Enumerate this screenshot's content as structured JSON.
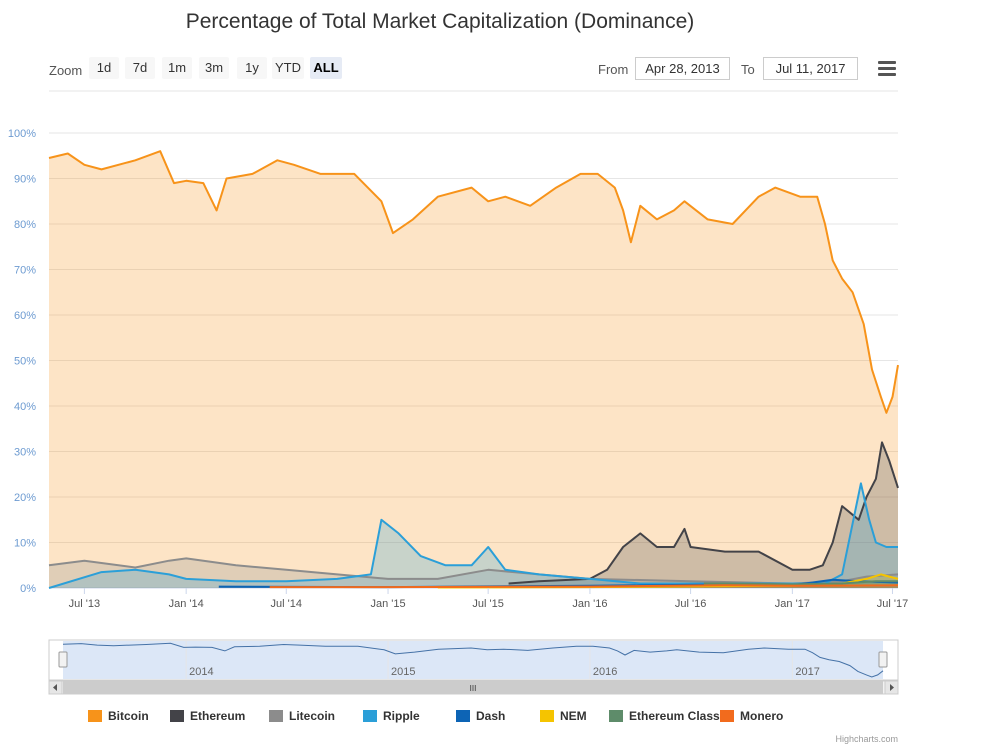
{
  "toolbar": {
    "zoom_label": "Zoom",
    "zoom_buttons": [
      "1d",
      "7d",
      "1m",
      "3m",
      "1y",
      "YTD",
      "ALL"
    ],
    "active_zoom": "ALL",
    "from_label": "From",
    "from_value": "Apr 28, 2013",
    "to_label": "To",
    "to_value": "Jul 11, 2017",
    "menu_icon": "hamburger-menu-icon"
  },
  "navigator": {
    "year_labels": [
      "2014",
      "2015",
      "2016",
      "2017"
    ],
    "scrollbar_grip": "III"
  },
  "credits": "Highcharts.com",
  "chart_data": {
    "type": "area",
    "title": "Percentage of Total Market Capitalization (Dominance)",
    "xlabel": "",
    "ylabel": "",
    "x_range": [
      "2013-04-28",
      "2017-07-11"
    ],
    "x_tick_labels": [
      "Jul '13",
      "Jan '14",
      "Jul '14",
      "Jan '15",
      "Jul '15",
      "Jan '16",
      "Jul '16",
      "Jan '17",
      "Jul '17"
    ],
    "x_ticks": [
      "2013-07-01",
      "2014-01-01",
      "2014-07-01",
      "2015-01-01",
      "2015-07-01",
      "2016-01-01",
      "2016-07-01",
      "2017-01-01",
      "2017-07-01"
    ],
    "y_tick_labels": [
      "0%",
      "10%",
      "20%",
      "30%",
      "40%",
      "50%",
      "60%",
      "70%",
      "80%",
      "90%",
      "100%"
    ],
    "ylim": [
      0,
      100
    ],
    "grid": true,
    "legend_position": "bottom",
    "series": [
      {
        "name": "Bitcoin",
        "color": "#f7931a",
        "x": [
          "2013-04-28",
          "2013-06-01",
          "2013-07-01",
          "2013-08-01",
          "2013-10-01",
          "2013-11-15",
          "2013-12-10",
          "2014-01-01",
          "2014-02-01",
          "2014-02-25",
          "2014-03-15",
          "2014-05-01",
          "2014-06-15",
          "2014-07-15",
          "2014-09-01",
          "2014-11-01",
          "2014-12-20",
          "2015-01-10",
          "2015-02-15",
          "2015-04-01",
          "2015-06-01",
          "2015-07-01",
          "2015-08-01",
          "2015-09-15",
          "2015-11-01",
          "2015-12-15",
          "2016-01-15",
          "2016-02-15",
          "2016-03-01",
          "2016-03-15",
          "2016-04-01",
          "2016-05-01",
          "2016-06-01",
          "2016-06-20",
          "2016-08-01",
          "2016-09-15",
          "2016-11-01",
          "2016-12-01",
          "2017-01-15",
          "2017-02-15",
          "2017-03-01",
          "2017-03-15",
          "2017-04-01",
          "2017-04-20",
          "2017-05-10",
          "2017-05-25",
          "2017-06-10",
          "2017-06-20",
          "2017-07-01",
          "2017-07-11"
        ],
        "values": [
          94.5,
          95.5,
          93,
          92,
          94,
          96,
          89,
          89.5,
          89,
          83,
          90,
          91,
          94,
          93,
          91,
          91,
          85,
          78,
          81,
          86,
          88,
          85,
          86,
          84,
          88,
          91,
          91,
          88,
          83,
          76,
          84,
          81,
          83,
          85,
          81,
          80,
          86,
          88,
          86,
          86,
          80,
          72,
          68,
          65,
          58,
          48,
          42,
          38.5,
          42,
          49
        ]
      },
      {
        "name": "Ethereum",
        "color": "#434348",
        "x": [
          "2015-08-07",
          "2015-10-01",
          "2016-01-01",
          "2016-02-01",
          "2016-03-01",
          "2016-04-01",
          "2016-05-01",
          "2016-06-01",
          "2016-06-20",
          "2016-07-01",
          "2016-09-01",
          "2016-11-01",
          "2017-01-01",
          "2017-02-01",
          "2017-02-25",
          "2017-03-15",
          "2017-04-01",
          "2017-05-01",
          "2017-05-15",
          "2017-06-01",
          "2017-06-12",
          "2017-06-25",
          "2017-07-11"
        ],
        "values": [
          1,
          1.5,
          2,
          4,
          9,
          12,
          9,
          9,
          13,
          9,
          8,
          8,
          4,
          4,
          5,
          10,
          18,
          15,
          20,
          24,
          32,
          28,
          22
        ]
      },
      {
        "name": "Litecoin",
        "color": "#8c8c8c",
        "x": [
          "2013-04-28",
          "2013-07-01",
          "2013-10-01",
          "2013-12-01",
          "2014-01-01",
          "2014-04-01",
          "2014-07-01",
          "2014-10-01",
          "2015-01-01",
          "2015-04-01",
          "2015-07-01",
          "2015-10-01",
          "2016-01-01",
          "2016-07-01",
          "2017-01-01",
          "2017-04-01",
          "2017-05-15",
          "2017-07-11"
        ],
        "values": [
          5,
          6,
          4.5,
          6,
          6.5,
          5,
          4,
          3,
          2,
          2,
          4,
          3,
          2,
          1.5,
          1,
          1.5,
          2.5,
          3
        ]
      },
      {
        "name": "Ripple",
        "color": "#2b9fd8",
        "x": [
          "2013-04-28",
          "2013-08-01",
          "2013-10-01",
          "2013-12-01",
          "2014-01-01",
          "2014-04-01",
          "2014-07-01",
          "2014-10-01",
          "2014-12-01",
          "2014-12-20",
          "2015-01-20",
          "2015-03-01",
          "2015-04-15",
          "2015-06-01",
          "2015-07-01",
          "2015-08-01",
          "2015-10-01",
          "2016-01-01",
          "2016-04-01",
          "2016-07-01",
          "2016-10-01",
          "2017-01-01",
          "2017-03-01",
          "2017-04-01",
          "2017-05-05",
          "2017-05-20",
          "2017-06-01",
          "2017-06-20",
          "2017-07-11"
        ],
        "values": [
          0,
          3.5,
          4,
          3,
          2,
          1.5,
          1.5,
          2,
          3,
          15,
          12,
          7,
          5,
          5,
          9,
          4,
          3,
          2,
          1,
          1,
          1,
          1,
          1,
          3,
          23,
          15,
          10,
          9,
          9
        ]
      },
      {
        "name": "Dash",
        "color": "#0d64b5",
        "x": [
          "2014-03-01",
          "2015-01-01",
          "2016-01-01",
          "2016-10-01",
          "2017-01-01",
          "2017-03-15",
          "2017-05-01",
          "2017-07-11"
        ],
        "values": [
          0.3,
          0.2,
          0.5,
          0.8,
          0.6,
          1.8,
          1.5,
          1.2
        ]
      },
      {
        "name": "NEM",
        "color": "#f5c400",
        "x": [
          "2015-04-01",
          "2016-01-01",
          "2017-01-01",
          "2017-04-01",
          "2017-05-15",
          "2017-06-10",
          "2017-07-11"
        ],
        "values": [
          0.1,
          0.2,
          0.5,
          1,
          2,
          3,
          2
        ]
      },
      {
        "name": "Ethereum Classic",
        "color": "#5e8c6a",
        "x": [
          "2016-07-25",
          "2016-09-01",
          "2017-01-01",
          "2017-04-01",
          "2017-06-01",
          "2017-07-11"
        ],
        "values": [
          1,
          1,
          0.8,
          1,
          1.5,
          1.5
        ]
      },
      {
        "name": "Monero",
        "color": "#f26b1d",
        "x": [
          "2014-06-01",
          "2015-01-01",
          "2016-01-01",
          "2016-09-01",
          "2017-01-01",
          "2017-07-11"
        ],
        "values": [
          0.2,
          0.2,
          0.3,
          0.6,
          0.5,
          0.6
        ]
      }
    ]
  }
}
